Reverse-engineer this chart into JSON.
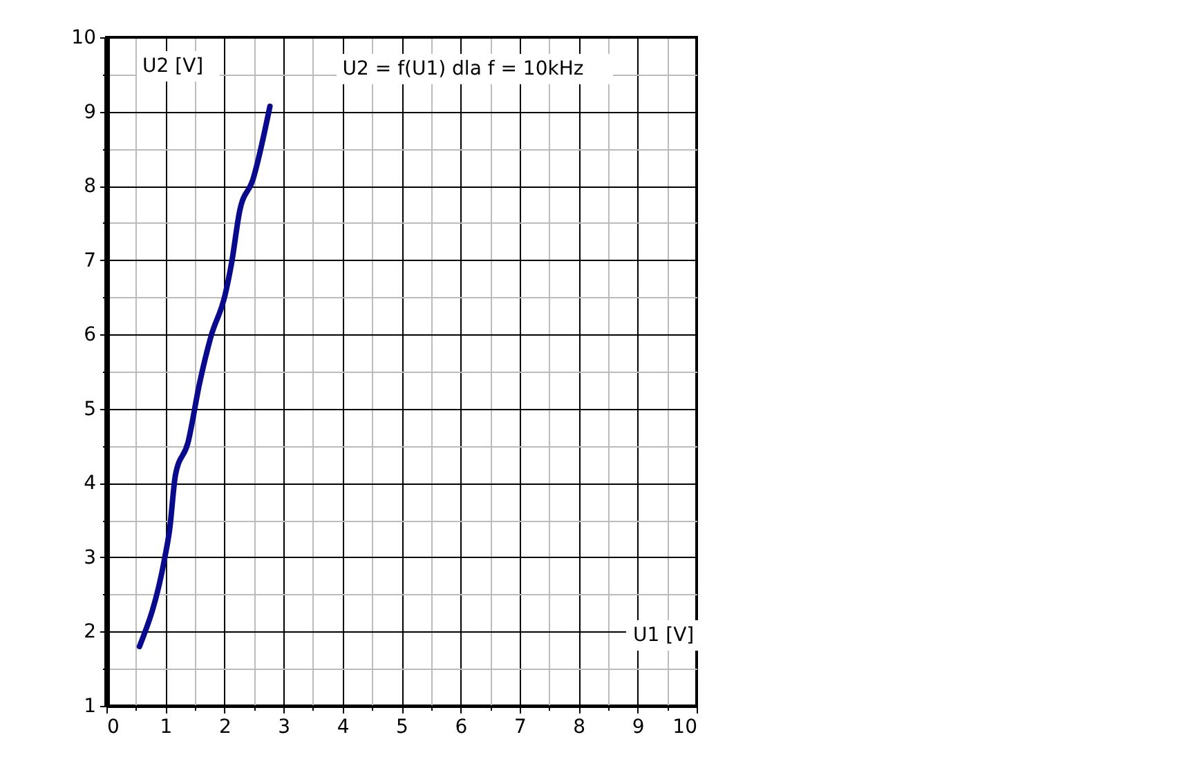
{
  "chart_data": {
    "type": "line",
    "title": "U2 = f(U1) dla f = 10kHz",
    "xlabel": "U1 [V]",
    "ylabel": "U2 [V]",
    "series": [
      {
        "color": "#0a0a8c",
        "x": [
          0.56,
          0.99,
          1.07,
          1.17,
          1.38,
          1.58,
          1.77,
          2.01,
          2.12,
          2.26,
          2.48,
          2.77
        ],
        "values": [
          1.8,
          3.0,
          3.37,
          4.11,
          4.54,
          5.35,
          5.97,
          6.53,
          6.96,
          7.67,
          8.08,
          9.07
        ]
      }
    ],
    "xlim": [
      0,
      10
    ],
    "ylim": [
      1,
      10
    ],
    "xticks": [
      0,
      {
        "value": 0.5,
        "label": null
      },
      1,
      {
        "value": 1.5,
        "label": null
      },
      2,
      {
        "value": 2.5,
        "label": null
      },
      3,
      {
        "value": 3.5,
        "label": null
      },
      4,
      {
        "value": 4.5,
        "label": null
      },
      5,
      {
        "value": 5.5,
        "label": null
      },
      6,
      {
        "value": 6.5,
        "label": null
      },
      7,
      {
        "value": 7.5,
        "label": null
      },
      8,
      {
        "value": 8.5,
        "label": null
      },
      9,
      {
        "value": 9.5,
        "label": null
      },
      10
    ],
    "yticks": [
      1,
      {
        "value": 1.5,
        "label": null
      },
      2,
      {
        "value": 2.5,
        "label": null
      },
      3,
      {
        "value": 3.5,
        "label": null
      },
      4,
      {
        "value": 4.5,
        "label": null
      },
      5,
      {
        "value": 5.5,
        "label": null
      },
      6,
      {
        "value": 6.5,
        "label": null
      },
      7,
      {
        "value": 7.5,
        "label": null
      },
      8,
      {
        "value": 8.5,
        "label": null
      },
      9,
      {
        "value": 9.5,
        "label": null
      },
      10
    ],
    "grid": true,
    "marker": "none",
    "line_style": "solid"
  }
}
